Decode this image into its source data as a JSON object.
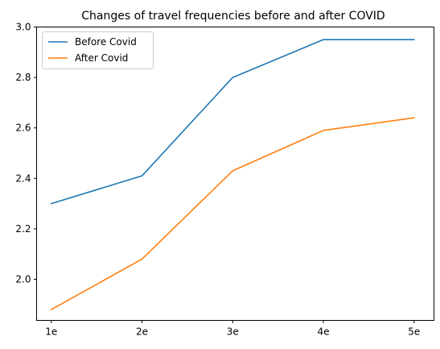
{
  "chart_data": {
    "type": "line",
    "title": "Changes of travel frequencies before and after COVID",
    "xlabel": "",
    "ylabel": "",
    "categories": [
      "1e",
      "2e",
      "3e",
      "4e",
      "5e"
    ],
    "series": [
      {
        "name": "Before Covid",
        "color": "#1f77b4",
        "values": [
          2.3,
          2.41,
          2.8,
          2.95,
          2.95
        ]
      },
      {
        "name": "After Covid",
        "color": "#ff7f0e",
        "values": [
          1.88,
          2.08,
          2.43,
          2.59,
          2.64
        ]
      }
    ],
    "ylim": [
      1.837,
      3.0
    ],
    "yticks": [
      "2.0",
      "2.2",
      "2.4",
      "2.6",
      "2.8",
      "3.0"
    ],
    "grid": false,
    "legend": "top-left"
  }
}
